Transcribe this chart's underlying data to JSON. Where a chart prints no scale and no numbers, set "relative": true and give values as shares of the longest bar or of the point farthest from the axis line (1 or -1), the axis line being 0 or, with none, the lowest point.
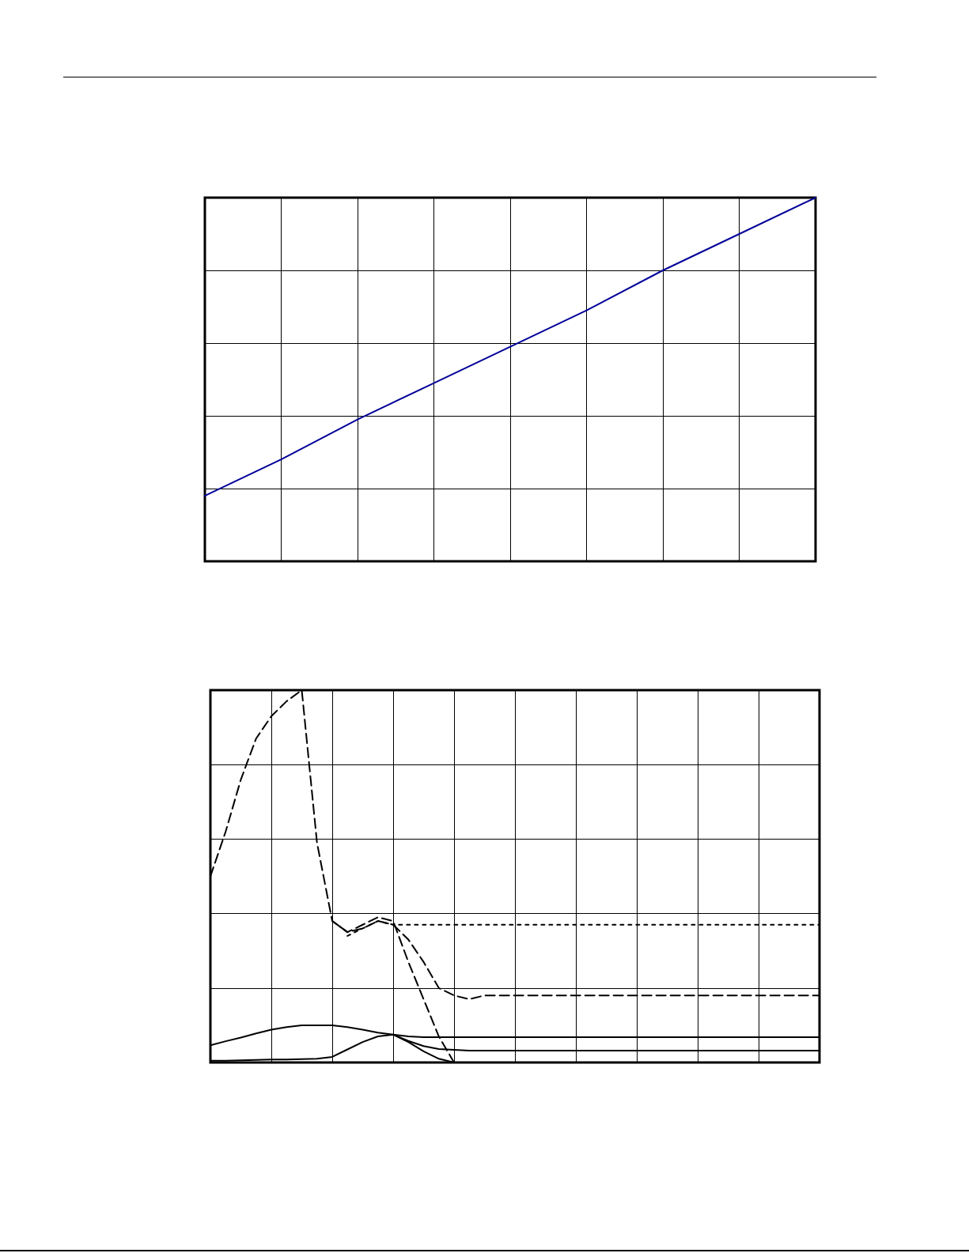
{
  "chart_data": [
    {
      "type": "line",
      "relative": true,
      "grid": true,
      "marker": "none",
      "categories": [
        null,
        null,
        null,
        null,
        null,
        null,
        null,
        null,
        null
      ],
      "series": [
        {
          "color": "#000099",
          "line_style": "solid",
          "values": [
            0.18,
            0.28,
            0.39,
            0.49,
            0.59,
            0.69,
            0.8,
            0.9,
            1
          ]
        }
      ]
    },
    {
      "type": "line",
      "relative": true,
      "grid": true,
      "marker": "none",
      "categories": [
        null,
        null,
        null,
        null,
        null,
        null,
        null,
        null,
        null,
        null,
        null,
        null,
        null,
        null,
        null,
        null,
        null,
        null,
        null,
        null,
        null,
        null,
        null,
        null,
        null,
        null,
        null,
        null,
        null,
        null,
        null,
        null,
        null,
        null,
        null,
        null,
        null,
        null,
        null,
        null,
        null
      ],
      "series": [
        {
          "color": "#000000",
          "line_style": "solid",
          "values": [
            0.046,
            0.057,
            0.067,
            0.078,
            0.088,
            0.095,
            0.1,
            0.1,
            0.1,
            0.095,
            0.088,
            0.08,
            0.075,
            0.058,
            0.044,
            0.036,
            0.034,
            0.032,
            0.032,
            0.032,
            0.032,
            0.032,
            0.032,
            0.032,
            0.032,
            0.032,
            0.032,
            0.032,
            0.032,
            0.032,
            0.032,
            0.032,
            0.032,
            0.032,
            0.032,
            0.032,
            0.032,
            0.032,
            0.032,
            0.032,
            0.032
          ]
        },
        {
          "color": "#000000",
          "line_style": "dashed",
          "values": [
            0.5,
            0.62,
            0.76,
            0.87,
            0.93,
            0.97,
            1,
            0.59,
            0.38,
            0.35,
            0.36,
            0.38,
            0.37,
            0.33,
            0.27,
            0.2,
            0.18,
            0.17,
            0.18,
            0.18,
            0.18,
            0.18,
            0.18,
            0.18,
            0.18,
            0.18,
            0.18,
            0.18,
            0.18,
            0.18,
            0.18,
            0.18,
            0.18,
            0.18,
            0.18,
            0.18,
            0.18,
            0.18,
            0.18,
            0.18,
            0.18
          ]
        },
        {
          "color": "#000000",
          "line_style": "solid",
          "values": [
            0.005,
            0.005,
            0.006,
            0.007,
            0.008,
            0.008,
            0.009,
            0.01,
            0.015,
            0.035,
            0.055,
            0.07,
            0.075,
            0.07,
            0.068,
            0.068,
            0.068,
            0.068,
            0.068,
            0.068,
            0.068,
            0.068,
            0.068,
            0.068,
            0.068,
            0.068,
            0.068,
            0.068,
            0.068,
            0.068,
            0.068,
            0.068,
            0.068,
            0.068,
            0.068,
            0.068,
            0.068,
            0.068,
            0.068,
            0.068,
            0.068
          ]
        },
        {
          "color": "#000000",
          "line_style": "dashed",
          "values": [
            null,
            null,
            null,
            null,
            null,
            null,
            null,
            null,
            0.38,
            0.35,
            0.37,
            0.39,
            0.38,
            0.27,
            0.17,
            0.07,
            0,
            null,
            null,
            null,
            null,
            null,
            null,
            null,
            null,
            null,
            null,
            null,
            null,
            null,
            null,
            null,
            null,
            null,
            null,
            null,
            null,
            null,
            null,
            null,
            null
          ]
        },
        {
          "color": "#000000",
          "line_style": "solid",
          "values": [
            null,
            null,
            null,
            null,
            null,
            null,
            null,
            null,
            null,
            null,
            null,
            null,
            0.075,
            0.055,
            0.03,
            0.01,
            0,
            null,
            null,
            null,
            null,
            null,
            null,
            null,
            null,
            null,
            null,
            null,
            null,
            null,
            null,
            null,
            null,
            null,
            null,
            null,
            null,
            null,
            null,
            null,
            null
          ]
        },
        {
          "color": "#000000",
          "line_style": "dotted",
          "values": [
            null,
            null,
            null,
            null,
            null,
            null,
            null,
            null,
            null,
            0.34,
            0.36,
            0.38,
            0.37,
            0.37,
            0.37,
            0.37,
            0.37,
            0.37,
            0.37,
            0.37,
            0.37,
            0.37,
            0.37,
            0.37,
            0.37,
            0.37,
            0.37,
            0.37,
            0.37,
            0.37,
            0.37,
            0.37,
            0.37,
            0.37,
            0.37,
            0.37,
            0.37,
            0.37,
            0.37,
            0.37,
            0.37
          ]
        }
      ]
    }
  ]
}
